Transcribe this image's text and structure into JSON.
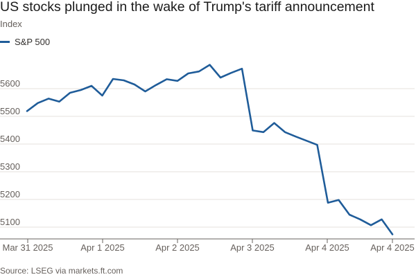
{
  "title": "US stocks plunged in the wake of Trump's tariff announcement",
  "subtitle": "Index",
  "source": "Source: LSEG via markets.ft.com",
  "colors": {
    "line": "#1f5c99",
    "grid": "#e6e2dd",
    "axis": "#66605c"
  },
  "chart_data": {
    "type": "line",
    "ylabel": "Index",
    "ylim": [
      5075,
      5700
    ],
    "yticks": [
      5100,
      5200,
      5300,
      5400,
      5500,
      5600
    ],
    "x_ticks": [
      "Mar 31 2025",
      "Apr 1 2025",
      "Apr 2 2025",
      "Apr 3 2025",
      "Apr 4 2025",
      "Apr 4 2025"
    ],
    "grid": true,
    "legend": "top-left",
    "series": [
      {
        "name": "S&P 500",
        "values": [
          5519,
          5548,
          5564,
          5553,
          5585,
          5595,
          5610,
          5575,
          5635,
          5630,
          5615,
          5590,
          5613,
          5634,
          5628,
          5655,
          5662,
          5686,
          5640,
          5657,
          5672,
          5449,
          5443,
          5476,
          5443,
          5427,
          5412,
          5397,
          5188,
          5198,
          5145,
          5128,
          5107,
          5128,
          5074
        ]
      }
    ]
  }
}
